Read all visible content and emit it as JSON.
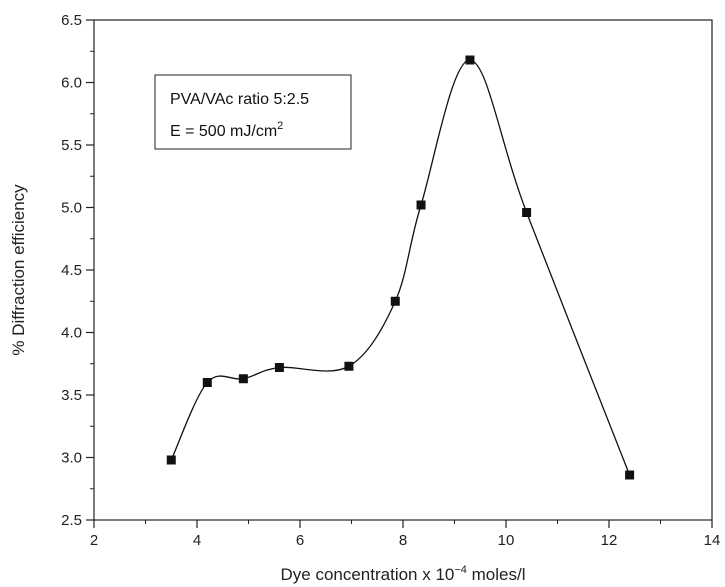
{
  "chart_data": {
    "type": "scatter",
    "title": "",
    "xlabel_prefix": "Dye concentration x 10",
    "xlabel_exponent": "−4",
    "xlabel_suffix": " moles/l",
    "ylabel": "% Diffraction efficiency",
    "xlim": [
      2,
      14
    ],
    "ylim": [
      2.5,
      6.5
    ],
    "xticks": [
      2,
      4,
      6,
      8,
      10,
      12,
      14
    ],
    "yticks": [
      "2.5",
      "3.0",
      "3.5",
      "4.0",
      "4.5",
      "5.0",
      "5.5",
      "6.0",
      "6.5"
    ],
    "grid": false,
    "legend": "none",
    "marker": "square",
    "marker_color": "#111111",
    "line": "smooth",
    "series": [
      {
        "x": [
          3.5,
          4.2,
          4.9,
          5.6,
          6.95,
          7.85,
          8.35,
          9.3,
          10.4,
          12.4
        ],
        "y": [
          2.98,
          3.6,
          3.63,
          3.72,
          3.73,
          4.25,
          5.02,
          6.18,
          4.96,
          2.86
        ]
      }
    ],
    "annotation": {
      "line1": "PVA/VAc ratio 5:2.5",
      "line2_prefix": "E = 500 mJ/cm",
      "line2_exponent": "2",
      "position": "top-left"
    }
  }
}
